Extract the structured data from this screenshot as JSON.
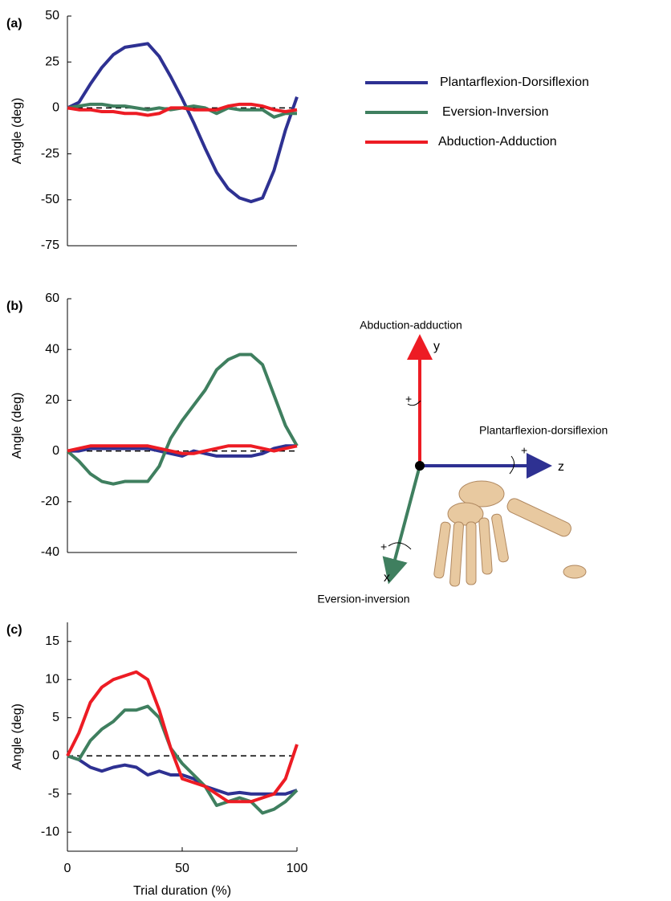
{
  "chart_data": [
    {
      "type": "line",
      "panel": "(a)",
      "ylabel": "Angle (deg)",
      "x": [
        0,
        5,
        10,
        15,
        20,
        25,
        30,
        35,
        40,
        45,
        50,
        55,
        60,
        65,
        70,
        75,
        80,
        85,
        90,
        95,
        100
      ],
      "xlim": [
        0,
        100
      ],
      "ylim": [
        -75,
        50
      ],
      "yticks": [
        -75,
        -50,
        -25,
        0,
        25,
        50
      ],
      "reference_line": 0,
      "series": [
        {
          "name": "Plantarflexion-Dorsiflexion",
          "color": "#2e3192",
          "values": [
            0,
            3,
            13,
            22,
            29,
            33,
            34,
            35,
            28,
            17,
            5,
            -8,
            -22,
            -35,
            -44,
            -49,
            -51,
            -49,
            -34,
            -12,
            6
          ]
        },
        {
          "name": "Eversion-Inversion",
          "color": "#3f7f5f",
          "values": [
            0,
            1,
            2,
            2,
            1,
            1,
            0,
            -1,
            0,
            -1,
            0,
            1,
            0,
            -3,
            0,
            -1,
            -1,
            -1,
            -5,
            -3,
            -3
          ]
        },
        {
          "name": "Abduction-Adduction",
          "color": "#ed1c24",
          "values": [
            0,
            -1,
            -1,
            -2,
            -2,
            -3,
            -3,
            -4,
            -3,
            0,
            0,
            -1,
            -1,
            -1,
            1,
            2,
            2,
            1,
            -1,
            -2,
            -1
          ]
        }
      ]
    },
    {
      "type": "line",
      "panel": "(b)",
      "ylabel": "Angle (deg)",
      "x": [
        0,
        5,
        10,
        15,
        20,
        25,
        30,
        35,
        40,
        45,
        50,
        55,
        60,
        65,
        70,
        75,
        80,
        85,
        90,
        95,
        100
      ],
      "xlim": [
        0,
        100
      ],
      "ylim": [
        -40,
        60
      ],
      "yticks": [
        -40,
        -20,
        0,
        20,
        40,
        60
      ],
      "reference_line": 0,
      "series": [
        {
          "name": "Plantarflexion-Dorsiflexion",
          "color": "#2e3192",
          "values": [
            0,
            0,
            1,
            1,
            1,
            1,
            1,
            1,
            0,
            -1,
            -2,
            0,
            -1,
            -2,
            -2,
            -2,
            -2,
            -1,
            1,
            2,
            2
          ]
        },
        {
          "name": "Eversion-Inversion",
          "color": "#3f7f5f",
          "values": [
            0,
            -4,
            -9,
            -12,
            -13,
            -12,
            -12,
            -12,
            -6,
            5,
            12,
            18,
            24,
            32,
            36,
            38,
            38,
            34,
            22,
            10,
            2
          ]
        },
        {
          "name": "Abduction-Adduction",
          "color": "#ed1c24",
          "values": [
            0,
            1,
            2,
            2,
            2,
            2,
            2,
            2,
            1,
            0,
            -1,
            -1,
            0,
            1,
            2,
            2,
            2,
            1,
            0,
            1,
            2
          ]
        }
      ]
    },
    {
      "type": "line",
      "panel": "(c)",
      "ylabel": "Angle (deg)",
      "xlabel": "Trial duration (%)",
      "x": [
        0,
        5,
        10,
        15,
        20,
        25,
        30,
        35,
        40,
        45,
        50,
        55,
        60,
        65,
        70,
        75,
        80,
        85,
        90,
        95,
        100
      ],
      "xlim": [
        0,
        100
      ],
      "xticks": [
        0,
        50,
        100
      ],
      "ylim": [
        -12.5,
        17.5
      ],
      "yticks": [
        -10,
        -5,
        0,
        5,
        10,
        15
      ],
      "reference_line": 0,
      "series": [
        {
          "name": "Plantarflexion-Dorsiflexion",
          "color": "#2e3192",
          "values": [
            0,
            -0.5,
            -1.5,
            -2,
            -1.5,
            -1.2,
            -1.5,
            -2.5,
            -2,
            -2.5,
            -2.5,
            -3,
            -4,
            -4.5,
            -5,
            -4.8,
            -5,
            -5,
            -5,
            -5,
            -4.5
          ]
        },
        {
          "name": "Eversion-Inversion",
          "color": "#3f7f5f",
          "values": [
            0,
            -0.5,
            2,
            3.5,
            4.5,
            6,
            6,
            6.5,
            5,
            1,
            -1,
            -2.5,
            -4,
            -6.5,
            -6,
            -5.5,
            -6,
            -7.5,
            -7,
            -6,
            -4.5
          ]
        },
        {
          "name": "Abduction-Adduction",
          "color": "#ed1c24",
          "values": [
            0,
            3,
            7,
            9,
            10,
            10.5,
            11,
            10,
            6,
            1,
            -3,
            -3.5,
            -4,
            -5,
            -6,
            -6,
            -6,
            -5.5,
            -5,
            -3,
            1.5
          ]
        }
      ]
    }
  ],
  "diagram": {
    "axes": [
      {
        "name": "Abduction-adduction",
        "letter": "y"
      },
      {
        "name": "Plantarflexion-dorsiflexion",
        "letter": "z"
      },
      {
        "name": "Eversion-inversion",
        "letter": "x"
      }
    ],
    "plus": "+"
  }
}
